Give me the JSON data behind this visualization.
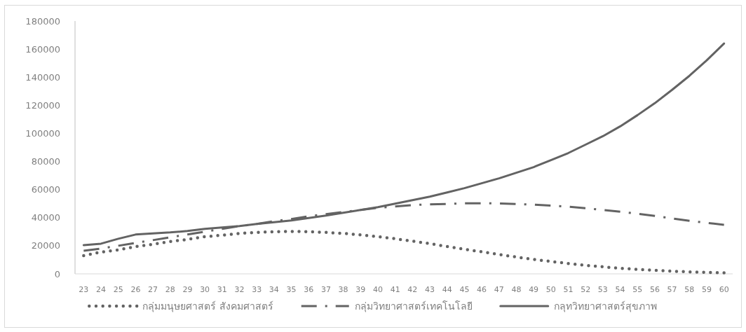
{
  "chart_data": {
    "type": "line",
    "categories": [
      "23",
      "24",
      "25",
      "26",
      "27",
      "28",
      "29",
      "30",
      "31",
      "32",
      "33",
      "34",
      "35",
      "36",
      "37",
      "38",
      "39",
      "40",
      "41",
      "42",
      "43",
      "44",
      "45",
      "46",
      "47",
      "48",
      "49",
      "50",
      "51",
      "52",
      "53",
      "54",
      "55",
      "56",
      "57",
      "58",
      "59",
      "60"
    ],
    "ylim": [
      0,
      180000
    ],
    "yticks": [
      0,
      20000,
      40000,
      60000,
      80000,
      100000,
      120000,
      140000,
      160000,
      180000
    ],
    "grid": false,
    "legend": "bottom",
    "marker": "none",
    "series": [
      {
        "name": "กลุ่มมนุษยศาสตร์ สังคมศาสตร์",
        "color": "#636363",
        "line_style": "dotted",
        "values": [
          13000,
          15500,
          17000,
          19500,
          21000,
          23000,
          24500,
          26500,
          27500,
          28800,
          29500,
          30000,
          30200,
          30000,
          29500,
          28800,
          27800,
          26500,
          25000,
          23300,
          21500,
          19500,
          17500,
          15700,
          13800,
          12000,
          10300,
          8800,
          7400,
          6100,
          5000,
          4000,
          3200,
          2500,
          1900,
          1400,
          1000,
          700
        ]
      },
      {
        "name": "กลุ่มวิทยาศาสตร์เทคโนโลยี",
        "color": "#636363",
        "line_style": "dashed",
        "values": [
          16500,
          18000,
          20000,
          22000,
          24000,
          26000,
          28000,
          30000,
          32000,
          34000,
          35500,
          37500,
          39000,
          41000,
          42500,
          44000,
          45500,
          47000,
          48000,
          49000,
          49500,
          49800,
          50200,
          50300,
          50100,
          49700,
          49300,
          48600,
          47800,
          46700,
          45500,
          44200,
          42800,
          41300,
          39500,
          37800,
          36300,
          34900
        ]
      },
      {
        "name": "กลุทวิทยาศาสตร์สุขภาพ",
        "color": "#636363",
        "line_style": "solid",
        "values": [
          20500,
          21500,
          25000,
          28000,
          28800,
          29500,
          30500,
          32000,
          33000,
          34000,
          35500,
          36800,
          38000,
          39800,
          41500,
          43500,
          45500,
          47500,
          50000,
          52500,
          55000,
          58000,
          61000,
          64500,
          68000,
          72000,
          76000,
          81000,
          86000,
          92000,
          98000,
          105000,
          113000,
          121500,
          131000,
          141000,
          152000,
          164000
        ]
      }
    ]
  }
}
